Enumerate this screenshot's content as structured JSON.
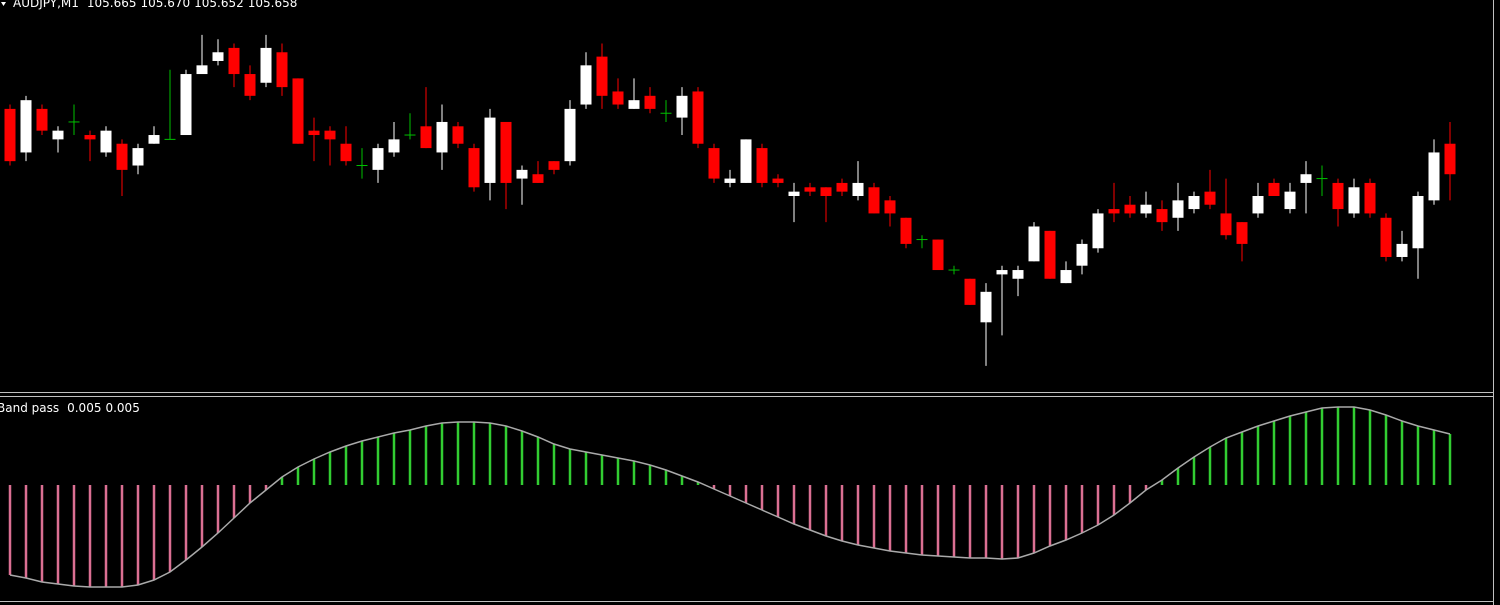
{
  "chart_data": [
    {
      "type": "candlestick",
      "title": "AUDJPY,M1",
      "header_values": [
        105.665,
        {
          "value": 105.67,
          "label": "105.670"
        },
        105.652,
        105.658
      ],
      "up_color": "#ffffff",
      "down_color": "#ff0000",
      "doji_color": "#00c000",
      "ylim": [
        105.608,
        105.698
      ],
      "open": [
        105.673,
        105.663,
        105.673,
        105.666,
        105.67,
        105.667,
        105.663,
        105.665,
        105.66,
        105.665,
        105.666,
        105.667,
        105.681,
        105.684,
        105.687,
        105.681,
        105.679,
        105.686,
        105.68,
        105.668,
        105.668,
        105.665,
        105.66,
        105.659,
        105.663,
        105.667,
        105.669,
        105.663,
        105.669,
        105.664,
        105.656,
        105.67,
        105.657,
        105.658,
        105.661,
        105.661,
        105.674,
        105.685,
        105.677,
        105.673,
        105.676,
        105.672,
        105.671,
        105.677,
        105.664,
        105.656,
        105.656,
        105.664,
        105.657,
        105.653,
        105.655,
        105.655,
        105.656,
        105.653,
        105.655,
        105.652,
        105.648,
        105.643,
        105.643,
        105.636,
        105.634,
        105.624,
        105.635,
        105.634,
        105.638,
        105.645,
        105.633,
        105.637,
        105.641,
        105.65,
        105.651,
        105.649,
        105.65,
        105.648,
        105.65,
        105.654,
        105.649,
        105.647,
        105.649,
        105.656,
        105.65,
        105.656,
        105.657,
        105.656,
        105.649,
        105.656,
        105.648,
        105.639,
        105.641,
        105.652,
        105.665
      ],
      "high": [
        105.674,
        105.676,
        105.674,
        105.669,
        105.674,
        105.668,
        105.669,
        105.666,
        105.665,
        105.669,
        105.682,
        105.682,
        105.69,
        105.689,
        105.688,
        105.683,
        105.69,
        105.688,
        105.68,
        105.671,
        105.669,
        105.669,
        105.664,
        105.665,
        105.67,
        105.672,
        105.678,
        105.674,
        105.67,
        105.665,
        105.673,
        105.67,
        105.66,
        105.661,
        105.661,
        105.675,
        105.686,
        105.688,
        105.68,
        105.68,
        105.678,
        105.675,
        105.678,
        105.678,
        105.665,
        105.659,
        105.666,
        105.665,
        105.658,
        105.656,
        105.656,
        105.655,
        105.657,
        105.661,
        105.656,
        105.653,
        105.648,
        105.644,
        105.643,
        105.637,
        105.634,
        105.633,
        105.637,
        105.637,
        105.647,
        105.645,
        105.638,
        105.643,
        105.65,
        105.656,
        105.653,
        105.654,
        105.652,
        105.656,
        105.654,
        105.659,
        105.657,
        105.647,
        105.656,
        105.657,
        105.656,
        105.661,
        105.66,
        105.657,
        105.657,
        105.657,
        105.649,
        105.645,
        105.654,
        105.666,
        105.67
      ],
      "low": [
        105.66,
        105.661,
        105.667,
        105.663,
        105.667,
        105.661,
        105.662,
        105.653,
        105.658,
        105.665,
        105.666,
        105.667,
        105.681,
        105.683,
        105.678,
        105.675,
        105.678,
        105.676,
        105.665,
        105.661,
        105.66,
        105.66,
        105.657,
        105.656,
        105.662,
        105.666,
        105.664,
        105.659,
        105.664,
        105.654,
        105.652,
        105.65,
        105.651,
        105.656,
        105.658,
        105.66,
        105.673,
        105.673,
        105.673,
        105.673,
        105.672,
        105.67,
        105.667,
        105.664,
        105.656,
        105.655,
        105.656,
        105.655,
        105.655,
        105.647,
        105.653,
        105.647,
        105.653,
        105.652,
        105.649,
        105.646,
        105.641,
        105.641,
        105.636,
        105.635,
        105.628,
        105.614,
        105.621,
        105.63,
        105.638,
        105.634,
        105.633,
        105.635,
        105.64,
        105.647,
        105.648,
        105.648,
        105.645,
        105.645,
        105.649,
        105.65,
        105.643,
        105.638,
        105.648,
        105.653,
        105.649,
        105.649,
        105.653,
        105.646,
        105.648,
        105.648,
        105.638,
        105.638,
        105.634,
        105.651,
        105.652
      ],
      "close": [
        105.661,
        105.675,
        105.668,
        105.668,
        105.67,
        105.666,
        105.668,
        105.659,
        105.664,
        105.667,
        105.666,
        105.681,
        105.683,
        105.686,
        105.681,
        105.676,
        105.687,
        105.678,
        105.665,
        105.667,
        105.666,
        105.661,
        105.66,
        105.664,
        105.666,
        105.667,
        105.664,
        105.67,
        105.665,
        105.655,
        105.671,
        105.656,
        105.659,
        105.656,
        105.659,
        105.673,
        105.683,
        105.676,
        105.674,
        105.675,
        105.673,
        105.672,
        105.676,
        105.665,
        105.657,
        105.657,
        105.666,
        105.656,
        105.656,
        105.654,
        105.654,
        105.653,
        105.654,
        105.656,
        105.649,
        105.649,
        105.642,
        105.643,
        105.636,
        105.636,
        105.628,
        105.631,
        105.636,
        105.636,
        105.646,
        105.634,
        105.636,
        105.642,
        105.649,
        105.649,
        105.649,
        105.651,
        105.647,
        105.652,
        105.653,
        105.651,
        105.644,
        105.642,
        105.653,
        105.653,
        105.654,
        105.658,
        105.657,
        105.65,
        105.655,
        105.649,
        105.639,
        105.642,
        105.653,
        105.663,
        105.658
      ]
    },
    {
      "type": "bar",
      "title": "Band pass",
      "params": [
        0.005,
        0.005
      ],
      "positive_color": "#32cd32",
      "negative_color": "#db7093",
      "line_color": "#a9a9a9",
      "ylim": [
        -0.115,
        0.088
      ],
      "values": [
        -0.09,
        -0.093,
        -0.097,
        -0.099,
        -0.101,
        -0.102,
        -0.102,
        -0.102,
        -0.1,
        -0.095,
        -0.087,
        -0.075,
        -0.062,
        -0.048,
        -0.033,
        -0.018,
        -0.005,
        0.008,
        0.018,
        0.026,
        0.033,
        0.039,
        0.044,
        0.048,
        0.052,
        0.055,
        0.059,
        0.062,
        0.063,
        0.063,
        0.062,
        0.059,
        0.054,
        0.048,
        0.041,
        0.036,
        0.033,
        0.03,
        0.027,
        0.024,
        0.02,
        0.015,
        0.009,
        0.003,
        -0.004,
        -0.011,
        -0.018,
        -0.025,
        -0.032,
        -0.039,
        -0.045,
        -0.051,
        -0.056,
        -0.06,
        -0.063,
        -0.066,
        -0.068,
        -0.07,
        -0.071,
        -0.072,
        -0.073,
        -0.073,
        -0.074,
        -0.073,
        -0.068,
        -0.061,
        -0.055,
        -0.048,
        -0.04,
        -0.03,
        -0.018,
        -0.005,
        0.005,
        0.017,
        0.028,
        0.038,
        0.047,
        0.053,
        0.059,
        0.064,
        0.069,
        0.073,
        0.077,
        0.078,
        0.078,
        0.075,
        0.07,
        0.064,
        0.059,
        0.055,
        0.051
      ]
    }
  ]
}
